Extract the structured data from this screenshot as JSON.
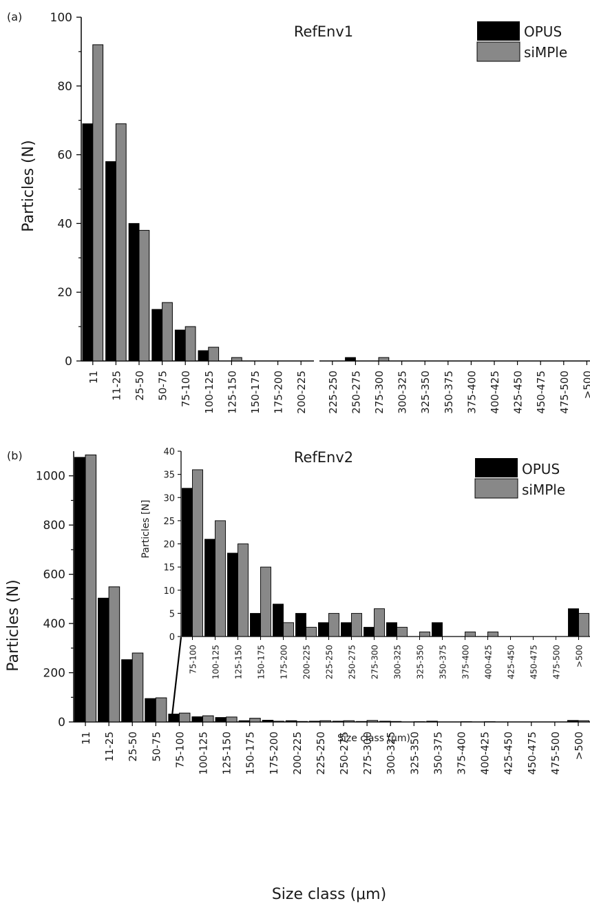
{
  "chart_data": [
    {
      "panel": "(a)",
      "type": "bar",
      "title": "RefEnv1",
      "ylabel": "Particles (N)",
      "xlabel": "",
      "ylim": [
        0,
        100
      ],
      "yticks": [
        0,
        20,
        40,
        60,
        80,
        100
      ],
      "axis_break_after": "200-225",
      "legend": "top-right",
      "categories": [
        "11",
        "11-25",
        "25-50",
        "50-75",
        "75-100",
        "100-125",
        "125-150",
        "150-175",
        "175-200",
        "200-225",
        "225-250",
        "250-275",
        "275-300",
        "300-325",
        "325-350",
        "350-375",
        "375-400",
        "400-425",
        "425-450",
        "450-475",
        "475-500",
        ">500"
      ],
      "series": [
        {
          "name": "OPUS",
          "color": "#000000",
          "values": [
            69,
            58,
            40,
            15,
            9,
            3,
            0,
            0,
            0,
            0,
            0,
            1,
            0,
            0,
            0,
            0,
            0,
            0,
            0,
            0,
            0,
            0
          ]
        },
        {
          "name": "siMPle",
          "color": "#888888",
          "values": [
            92,
            69,
            38,
            17,
            10,
            4,
            1,
            0,
            0,
            0,
            0,
            0,
            1,
            0,
            0,
            0,
            0,
            0,
            0,
            0,
            0,
            0
          ]
        }
      ]
    },
    {
      "panel": "(b)",
      "type": "bar",
      "title": "RefEnv2",
      "ylabel": "Particles (N)",
      "xlabel": "Size class (μm)",
      "ylim": [
        0,
        1100
      ],
      "yticks": [
        0,
        200,
        400,
        600,
        800,
        1000
      ],
      "legend": "top-right",
      "categories": [
        "11",
        "11-25",
        "25-50",
        "50-75",
        "75-100",
        "100-125",
        "125-150",
        "150-175",
        "175-200",
        "200-225",
        "225-250",
        "250-275",
        "275-300",
        "300-325",
        "325-350",
        "350-375",
        "375-400",
        "400-425",
        "425-450",
        "450-475",
        "475-500",
        ">500"
      ],
      "series": [
        {
          "name": "OPUS",
          "color": "#000000",
          "values": [
            1075,
            503,
            253,
            95,
            32,
            21,
            18,
            5,
            7,
            5,
            3,
            3,
            2,
            3,
            0,
            3,
            0,
            0,
            0,
            0,
            0,
            6
          ]
        },
        {
          "name": "siMPle",
          "color": "#888888",
          "values": [
            1085,
            549,
            280,
            98,
            36,
            25,
            20,
            15,
            3,
            2,
            5,
            5,
            6,
            2,
            1,
            0,
            1,
            1,
            0,
            0,
            0,
            5
          ]
        }
      ],
      "inset": {
        "ylabel": "Particles [N]",
        "xlabel": "Size class (μm)",
        "ylim": [
          0,
          40
        ],
        "yticks": [
          0,
          5,
          10,
          15,
          20,
          25,
          30,
          35,
          40
        ],
        "categories": [
          "75-100",
          "100-125",
          "125-150",
          "150-175",
          "175-200",
          "200-225",
          "225-250",
          "250-275",
          "275-300",
          "300-325",
          "325-350",
          "350-375",
          "375-400",
          "400-425",
          "425-450",
          "450-475",
          "475-500",
          ">500"
        ],
        "series": [
          {
            "name": "OPUS",
            "values": [
              32,
              21,
              18,
              5,
              7,
              5,
              3,
              3,
              2,
              3,
              0,
              3,
              0,
              0,
              0,
              0,
              0,
              6
            ]
          },
          {
            "name": "siMPle",
            "values": [
              36,
              25,
              20,
              15,
              3,
              2,
              5,
              5,
              6,
              2,
              1,
              0,
              1,
              1,
              0,
              0,
              0,
              5
            ]
          }
        ]
      }
    }
  ]
}
